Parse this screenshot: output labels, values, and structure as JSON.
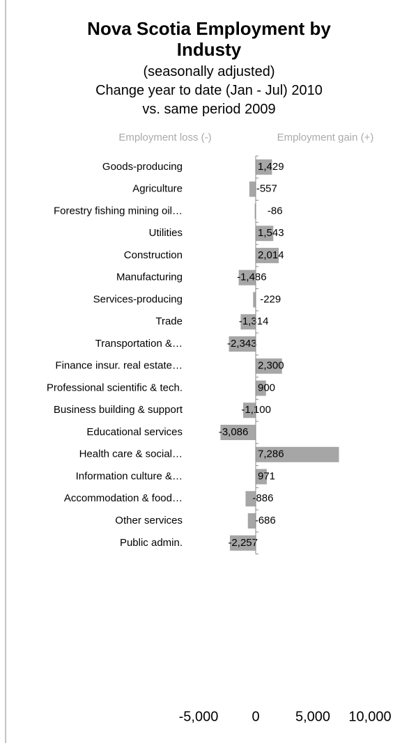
{
  "chart_data": {
    "type": "barh",
    "title": "Nova Scotia Employment by Industy",
    "subtitle": [
      "(seasonally adjusted)",
      "Change year to date (Jan - Jul) 2010",
      "vs. same period 2009"
    ],
    "annotations": [
      "Employment loss (-)",
      "Employment gain (+)"
    ],
    "categories": [
      "Goods-producing",
      "Agriculture",
      "Forestry fishing mining oil…",
      "Utilities",
      "Construction",
      "Manufacturing",
      "Services-producing",
      "Trade",
      "Transportation &…",
      "Finance insur. real estate…",
      "Professional scientific & tech.",
      "Business building & support",
      "Educational services",
      "Health care & social…",
      "Information culture &…",
      "Accommodation & food…",
      "Other services",
      "Public admin."
    ],
    "values": [
      1429,
      -557,
      -86,
      1543,
      2014,
      -1486,
      -229,
      -1314,
      -2343,
      2300,
      900,
      -1100,
      -3086,
      7286,
      971,
      -886,
      -686,
      -2257
    ],
    "value_labels": [
      "1,429",
      "-557",
      "-86",
      "1,543",
      "2,014",
      "-1,486",
      "-229",
      "-1,314",
      "-2,343",
      "2,300",
      "900",
      "-1,100",
      "-3,086",
      "7,286",
      "971",
      "-886",
      "-686",
      "-2,257"
    ],
    "color": "#a6a6a6",
    "xlim": [
      -5000,
      10000
    ],
    "xticks": [
      {
        "value": -5000,
        "label": "-5,000"
      },
      0,
      {
        "value": 5000,
        "label": "5,000"
      },
      {
        "value": 10000,
        "label": "10,000"
      }
    ],
    "grid": false
  }
}
